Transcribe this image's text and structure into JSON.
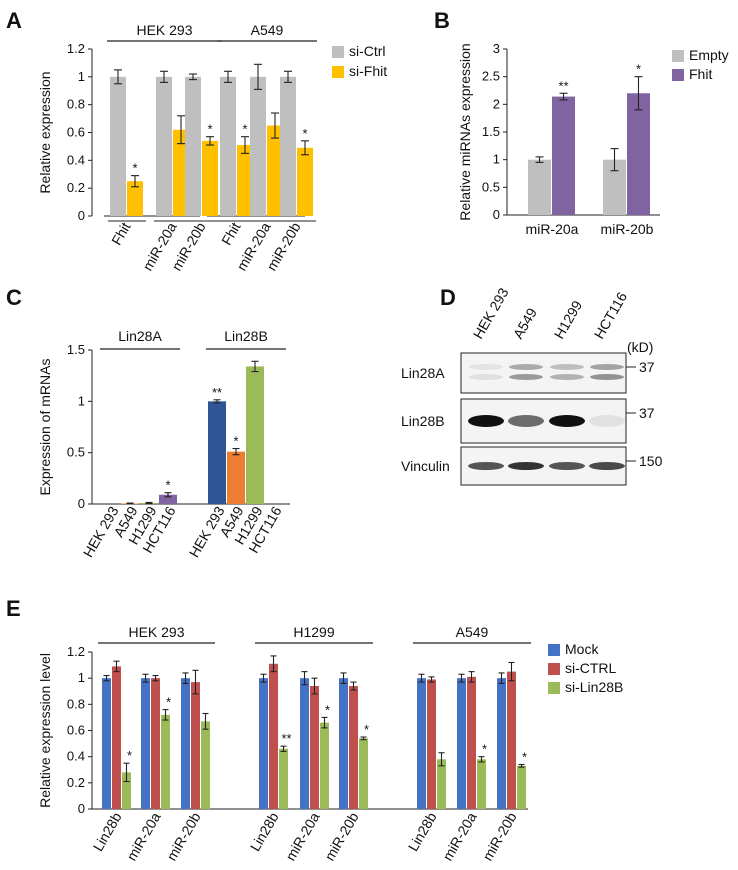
{
  "panels": {
    "A": {
      "letter": "A",
      "chart_data": {
        "type": "bar",
        "title": "",
        "xlabel": "",
        "ylabel": "Relative expression",
        "ylim": [
          0,
          1.2
        ],
        "yticks": [
          "0",
          "0.2",
          "0.4",
          "0.6",
          "0.8",
          "1",
          "1.2"
        ],
        "groups": [
          {
            "label": "HEK 293",
            "categories": [
              "Fhit",
              "miR-20a",
              "miR-20b"
            ]
          },
          {
            "label": "A549",
            "categories": [
              "Fhit",
              "miR-20a",
              "miR-20b"
            ]
          }
        ],
        "series": [
          {
            "name": "si-Ctrl",
            "color": "#bfbfbf",
            "values": [
              1.0,
              1.0,
              1.0,
              1.0,
              1.0,
              1.0
            ],
            "errors": [
              0.05,
              0.04,
              0.02,
              0.04,
              0.09,
              0.04
            ],
            "sig": [
              "",
              "",
              "",
              "",
              "",
              ""
            ]
          },
          {
            "name": "si-Fhit",
            "color": "#ffc000",
            "values": [
              0.25,
              0.62,
              0.54,
              0.51,
              0.65,
              0.49
            ],
            "errors": [
              0.04,
              0.1,
              0.03,
              0.06,
              0.09,
              0.05
            ],
            "sig": [
              "*",
              "",
              "*",
              "*",
              "",
              "*"
            ]
          }
        ],
        "legend": "top-right"
      }
    },
    "B": {
      "letter": "B",
      "chart_data": {
        "type": "bar",
        "title": "",
        "xlabel": "",
        "ylabel": "Relative miRNAs expression",
        "ylim": [
          0,
          3
        ],
        "yticks": [
          "0",
          "0.5",
          "1",
          "1.5",
          "2",
          "2.5",
          "3"
        ],
        "categories": [
          "miR-20a",
          "miR-20b"
        ],
        "series": [
          {
            "name": "Empty",
            "color": "#bfbfbf",
            "values": [
              1.0,
              1.0
            ],
            "errors": [
              0.05,
              0.2
            ],
            "sig": [
              "",
              ""
            ]
          },
          {
            "name": "Fhit",
            "color": "#8064a2",
            "values": [
              2.14,
              2.2
            ],
            "errors": [
              0.06,
              0.3
            ],
            "sig": [
              "**",
              "*"
            ]
          }
        ],
        "legend": "top-right"
      }
    },
    "C": {
      "letter": "C",
      "chart_data": {
        "type": "bar",
        "title": "",
        "xlabel": "",
        "ylabel": "Expression of mRNAs",
        "ylim": [
          0,
          1.5
        ],
        "yticks": [
          "0",
          "0.5",
          "1",
          "1.5"
        ],
        "groups": [
          {
            "label": "Lin28A",
            "categories": [
              "HEK 293",
              "A549",
              "H1299",
              "HCT116"
            ],
            "values": [
              0.0,
              0.005,
              0.01,
              0.09
            ],
            "errors": [
              0.0,
              0.004,
              0.005,
              0.02
            ],
            "colors": [
              "#4472c4",
              "#ed7d31",
              "#9bbb59",
              "#8064a2"
            ],
            "sig": [
              "",
              "",
              "",
              "*"
            ]
          },
          {
            "label": "Lin28B",
            "categories": [
              "HEK 293",
              "A549",
              "H1299",
              "HCT116"
            ],
            "values": [
              1.0,
              0.51,
              1.34,
              0.0
            ],
            "errors": [
              0.015,
              0.03,
              0.05,
              0.0
            ],
            "colors": [
              "#2f5597",
              "#ed7d31",
              "#9bbb59",
              "#8064a2"
            ],
            "sig": [
              "**",
              "*",
              "",
              ""
            ]
          }
        ]
      }
    },
    "D": {
      "letter": "D",
      "lanes": [
        "HEK 293",
        "A549",
        "H1299",
        "HCT116"
      ],
      "unit": "(kD)",
      "blots": [
        {
          "label": "Lin28A",
          "marker": "37",
          "intensities": [
            0.12,
            0.55,
            0.4,
            0.6
          ]
        },
        {
          "label": "Lin28B",
          "marker": "37",
          "intensities": [
            1.0,
            0.6,
            1.0,
            0.08
          ]
        },
        {
          "label": "Vinculin",
          "marker": "150",
          "intensities": [
            0.7,
            0.85,
            0.7,
            0.75
          ]
        }
      ]
    },
    "E": {
      "letter": "E",
      "chart_data": {
        "type": "bar",
        "title": "",
        "xlabel": "",
        "ylabel": "Relative expression level",
        "ylim": [
          0,
          1.2
        ],
        "yticks": [
          "0",
          "0.2",
          "0.4",
          "0.6",
          "0.8",
          "1",
          "1.2"
        ],
        "groups": [
          {
            "label": "HEK 293",
            "categories": [
              "Lin28b",
              "miR-20a",
              "miR-20b"
            ]
          },
          {
            "label": "H1299",
            "categories": [
              "Lin28b",
              "miR-20a",
              "miR-20b"
            ]
          },
          {
            "label": "A549",
            "categories": [
              "Lin28b",
              "miR-20a",
              "miR-20b"
            ]
          }
        ],
        "series": [
          {
            "name": "Mock",
            "color": "#4472c4",
            "values": [
              1.0,
              1.0,
              1.0,
              1.0,
              1.0,
              1.0,
              1.0,
              1.0,
              1.0
            ],
            "errors": [
              0.02,
              0.03,
              0.04,
              0.03,
              0.05,
              0.04,
              0.03,
              0.03,
              0.04
            ],
            "sig": [
              "",
              "",
              "",
              "",
              "",
              "",
              "",
              "",
              ""
            ]
          },
          {
            "name": "si-CTRL",
            "color": "#c0504d",
            "values": [
              1.09,
              1.0,
              0.97,
              1.11,
              0.94,
              0.94,
              0.99,
              1.01,
              1.05
            ],
            "errors": [
              0.04,
              0.02,
              0.09,
              0.06,
              0.06,
              0.03,
              0.02,
              0.04,
              0.07
            ],
            "sig": [
              "",
              "",
              "",
              "",
              "",
              "",
              "",
              "",
              ""
            ]
          },
          {
            "name": "si-Lin28B",
            "color": "#9bbb59",
            "values": [
              0.28,
              0.72,
              0.67,
              0.46,
              0.66,
              0.54,
              0.38,
              0.38,
              0.33
            ],
            "errors": [
              0.07,
              0.04,
              0.06,
              0.02,
              0.04,
              0.01,
              0.05,
              0.02,
              0.01
            ],
            "sig": [
              "*",
              "*",
              "",
              "**",
              "*",
              "*",
              "",
              "*",
              "*"
            ]
          }
        ],
        "legend": "top-right"
      }
    }
  }
}
